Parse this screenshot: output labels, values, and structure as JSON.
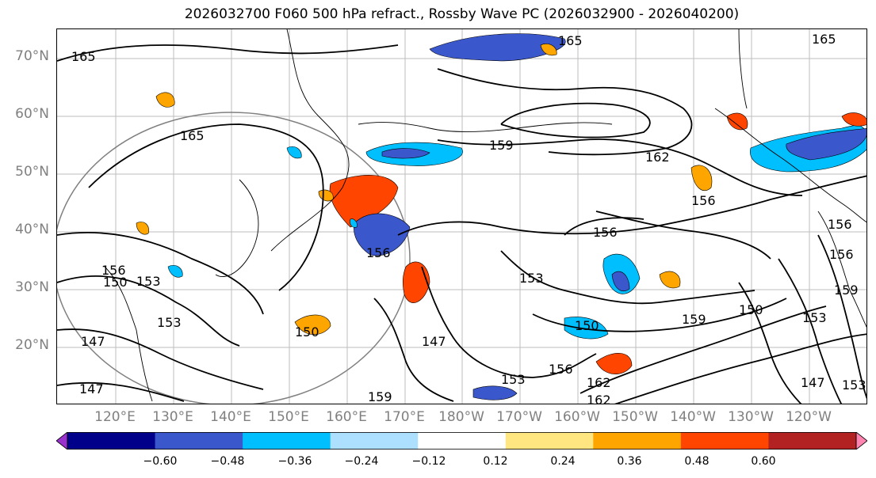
{
  "title": "2026032700 F060 500 hPa refract., Rossby Wave PC (2026032900 - 2026040200)",
  "latitude_labels": [
    "70°N",
    "60°N",
    "50°N",
    "40°N",
    "30°N",
    "20°N"
  ],
  "longitude_labels": [
    "120°E",
    "130°E",
    "140°E",
    "150°E",
    "160°E",
    "170°E",
    "180°W",
    "170°W",
    "160°W",
    "150°W",
    "140°W",
    "130°W",
    "120°W"
  ],
  "colorbar": {
    "ticks": [
      "−0.60",
      "−0.48",
      "−0.36",
      "−0.24",
      "−0.12",
      "0.12",
      "0.24",
      "0.36",
      "0.48",
      "0.60"
    ],
    "colors": [
      "#9932CC",
      "#00008B",
      "#3A57CC",
      "#00BFFF",
      "#ADDFFF",
      "#FFFFFF",
      "#FFE680",
      "#FFA500",
      "#FF4500",
      "#B22222",
      "#FF85B0"
    ]
  },
  "contour_labels": [
    {
      "text": "165"
    },
    {
      "text": "165"
    },
    {
      "text": "165"
    },
    {
      "text": "165"
    },
    {
      "text": "159"
    },
    {
      "text": "162"
    },
    {
      "text": "156"
    },
    {
      "text": "156"
    },
    {
      "text": "156"
    },
    {
      "text": "156"
    },
    {
      "text": "153"
    },
    {
      "text": "153"
    },
    {
      "text": "153"
    },
    {
      "text": "156"
    },
    {
      "text": "150"
    },
    {
      "text": "150"
    },
    {
      "text": "159"
    },
    {
      "text": "150"
    },
    {
      "text": "147"
    },
    {
      "text": "147"
    },
    {
      "text": "147"
    },
    {
      "text": "153"
    },
    {
      "text": "156"
    },
    {
      "text": "162"
    },
    {
      "text": "162"
    },
    {
      "text": "159"
    },
    {
      "text": "153"
    },
    {
      "text": "147"
    },
    {
      "text": "153"
    },
    {
      "text": "159"
    },
    {
      "text": "150"
    },
    {
      "text": "156"
    }
  ]
}
